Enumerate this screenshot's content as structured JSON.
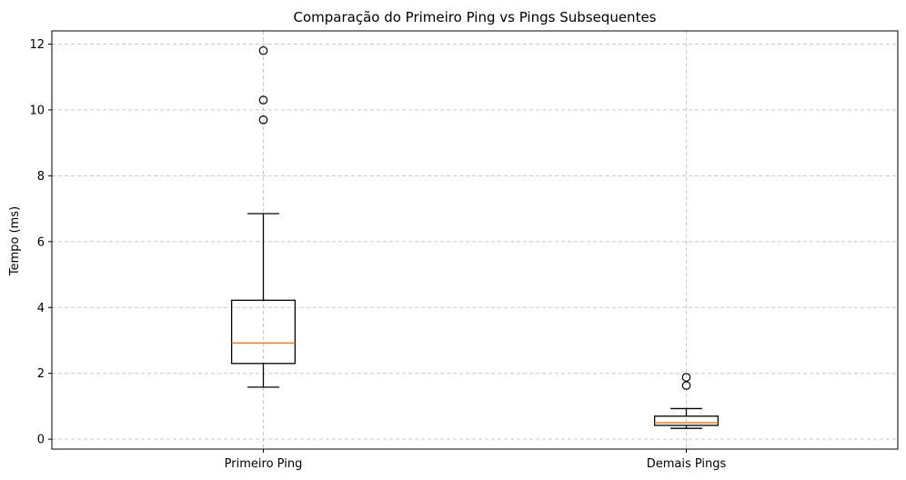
{
  "chart_data": {
    "type": "boxplot",
    "title": "Comparação do Primeiro Ping vs Pings Subsequentes",
    "xlabel": "",
    "ylabel": "Tempo (ms)",
    "ylim": [
      -0.3,
      12.4
    ],
    "yticks": [
      0,
      2,
      4,
      6,
      8,
      10,
      12
    ],
    "grid": true,
    "categories": [
      "Primeiro Ping",
      "Demais Pings"
    ],
    "boxes": [
      {
        "category": "Primeiro Ping",
        "whisker_low": 1.58,
        "q1": 2.3,
        "median": 2.92,
        "q3": 4.22,
        "whisker_high": 6.85,
        "outliers": [
          9.7,
          10.3,
          11.8
        ]
      },
      {
        "category": "Demais Pings",
        "whisker_low": 0.33,
        "q1": 0.42,
        "median": 0.5,
        "q3": 0.7,
        "whisker_high": 0.93,
        "outliers": [
          1.63,
          1.88
        ]
      }
    ],
    "colors": {
      "box": "#000000",
      "median": "#ff7f0e",
      "grid": "#c8c8c8"
    }
  }
}
